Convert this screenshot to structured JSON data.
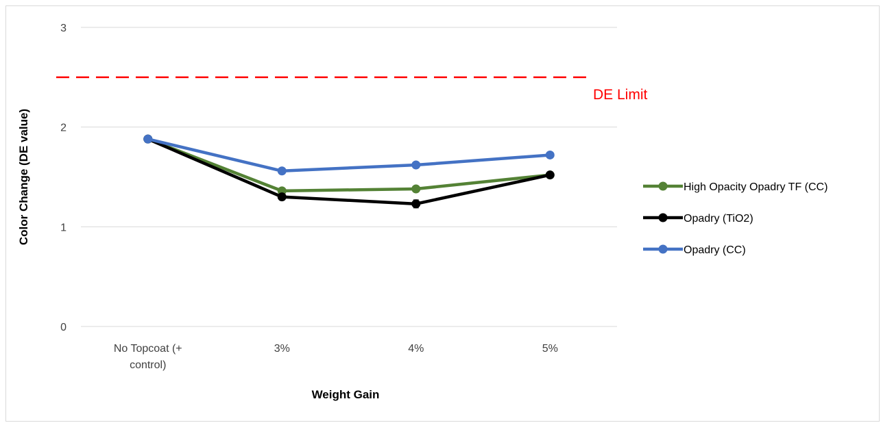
{
  "chart_data": {
    "type": "line",
    "title": "",
    "xlabel": "Weight Gain",
    "ylabel": "Color Change (DE value)",
    "categories": [
      "No Topcoat (+ control)",
      "3%",
      "4%",
      "5%"
    ],
    "category_lines": [
      [
        "No Topcoat (+",
        "control)"
      ],
      [
        "3%"
      ],
      [
        "4%"
      ],
      [
        "5%"
      ]
    ],
    "ylim": [
      0,
      3
    ],
    "yticks": [
      "0",
      "1",
      "2",
      "3"
    ],
    "grid": true,
    "legend_position": "right",
    "series": [
      {
        "name": "High Opacity Opadry TF (CC)",
        "color": "#548235",
        "values": [
          1.88,
          1.36,
          1.38,
          1.52
        ],
        "errors": [
          0.0,
          0.0,
          0.02,
          0.02
        ]
      },
      {
        "name": "Opadry (TiO2)",
        "color": "#000000",
        "values": [
          1.88,
          1.3,
          1.23,
          1.52
        ],
        "errors": [
          0.0,
          0.0,
          0.04,
          0.03
        ]
      },
      {
        "name": "Opadry (CC)",
        "color": "#4472c4",
        "values": [
          1.88,
          1.56,
          1.62,
          1.72
        ],
        "errors": [
          0.0,
          0.0,
          0.0,
          0.0
        ]
      }
    ],
    "limit_line": {
      "value": 2.5,
      "label": "DE Limit",
      "color": "#ff0000",
      "style": "dashed"
    }
  }
}
